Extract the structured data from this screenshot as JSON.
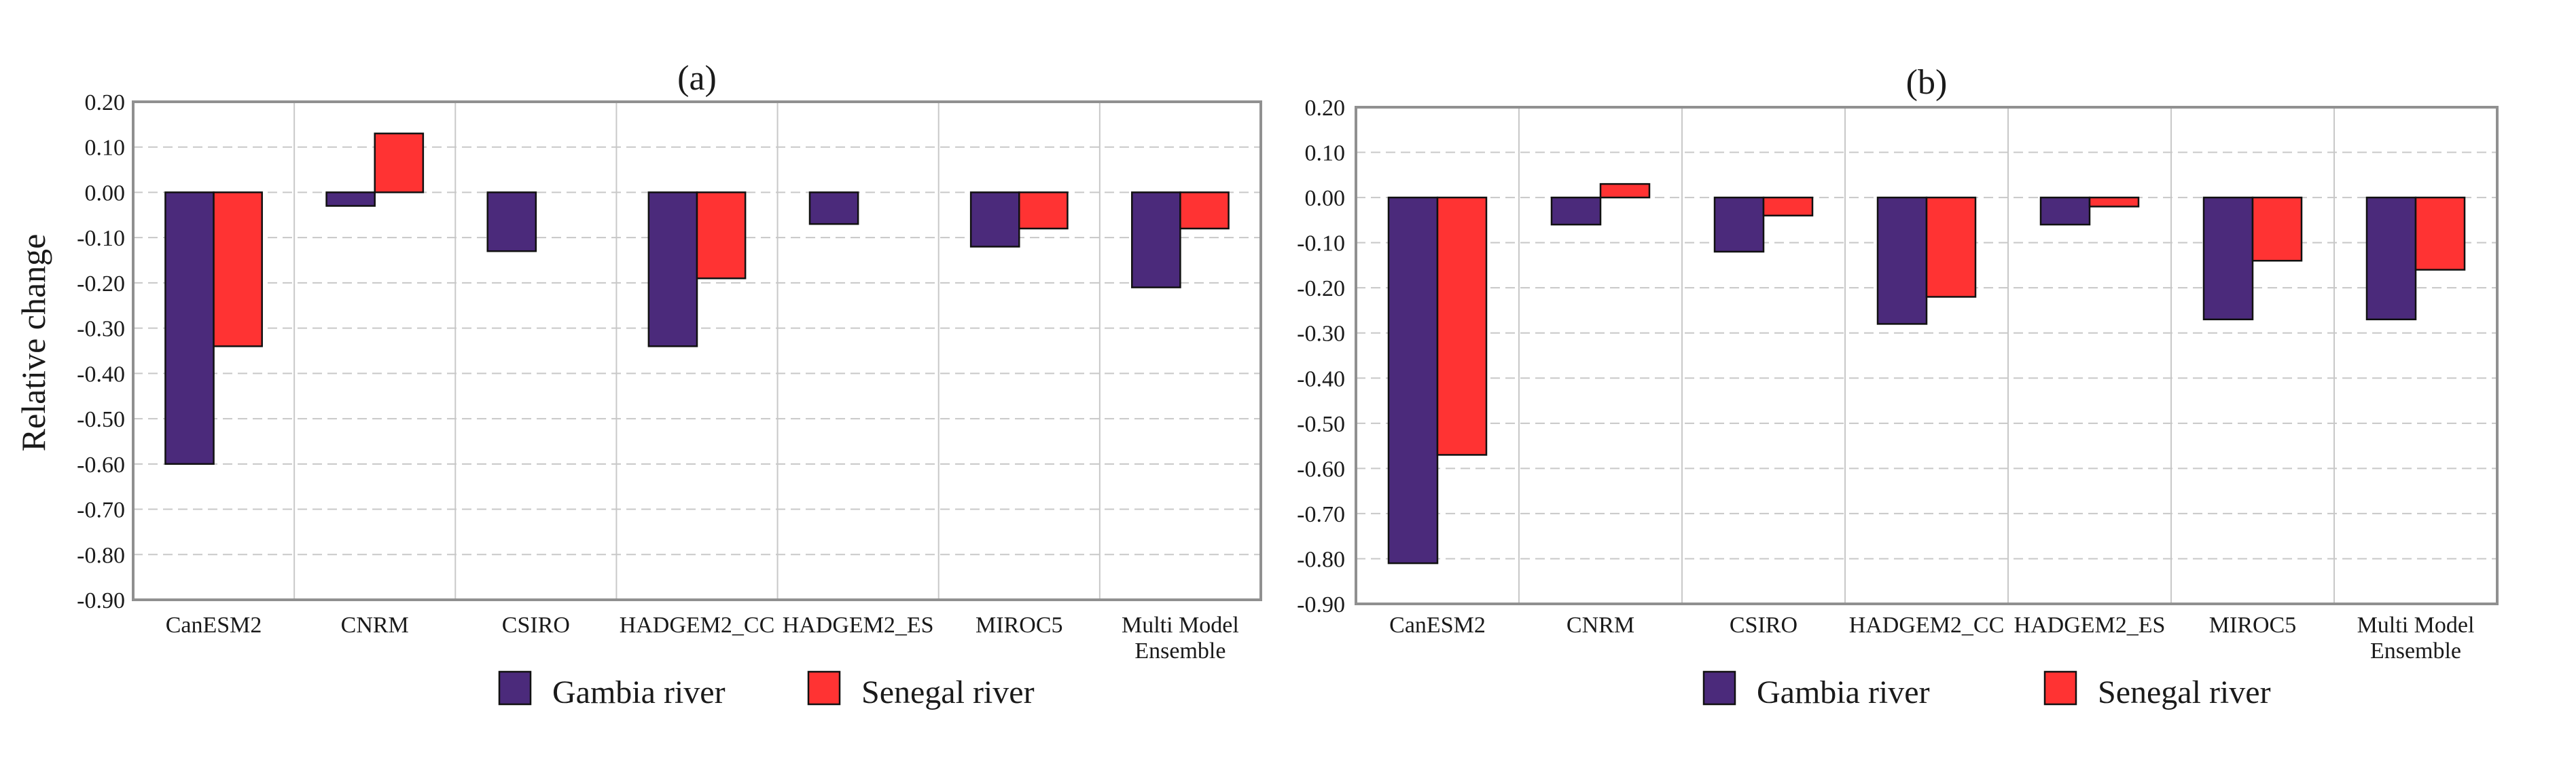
{
  "figure": {
    "ylabel": "Relative change",
    "categories": [
      "CanESM2",
      "CNRM",
      "CSIRO",
      "HADGEM2_CC",
      "HADGEM2_ES",
      "MIROC5",
      "Multi Model Ensemble"
    ],
    "category_lines": [
      [
        "CanESM2"
      ],
      [
        "CNRM"
      ],
      [
        "CSIRO"
      ],
      [
        "HADGEM2_CC"
      ],
      [
        "HADGEM2_ES"
      ],
      [
        "MIROC5"
      ],
      [
        "Multi Model",
        "Ensemble"
      ]
    ],
    "colors": {
      "gambia": "#4b2a7b",
      "senegal": "#ff3333",
      "grid": "#c8c8c8",
      "frame": "#909090"
    }
  },
  "chart_data": [
    {
      "type": "bar",
      "title": "(a)",
      "xlabel": "",
      "ylabel": "Relative change",
      "categories": [
        "CanESM2",
        "CNRM",
        "CSIRO",
        "HADGEM2_CC",
        "HADGEM2_ES",
        "MIROC5",
        "Multi Model Ensemble"
      ],
      "series": [
        {
          "name": "Gambia river",
          "values": [
            -0.6,
            -0.03,
            -0.13,
            -0.34,
            -0.07,
            -0.12,
            -0.21
          ]
        },
        {
          "name": "Senegal river",
          "values": [
            -0.34,
            0.13,
            0.0,
            -0.19,
            0.0,
            -0.08,
            -0.08
          ]
        }
      ],
      "ylim": [
        -0.9,
        0.2
      ],
      "yticks": [
        "0.20",
        "0.10",
        "0.00",
        "-0.10",
        "-0.20",
        "-0.30",
        "-0.40",
        "-0.50",
        "-0.60",
        "-0.70",
        "-0.80",
        "-0.90"
      ],
      "grid": true,
      "legend": "bottom"
    },
    {
      "type": "bar",
      "title": "(b)",
      "xlabel": "",
      "ylabel": "",
      "categories": [
        "CanESM2",
        "CNRM",
        "CSIRO",
        "HADGEM2_CC",
        "HADGEM2_ES",
        "MIROC5",
        "Multi Model Ensemble"
      ],
      "series": [
        {
          "name": "Gambia river",
          "values": [
            -0.81,
            -0.06,
            -0.12,
            -0.28,
            -0.06,
            -0.27,
            -0.27
          ]
        },
        {
          "name": "Senegal river",
          "values": [
            -0.57,
            0.03,
            -0.04,
            -0.22,
            -0.02,
            -0.14,
            -0.16
          ]
        }
      ],
      "ylim": [
        -0.9,
        0.2
      ],
      "yticks": [
        "0.20",
        "0.10",
        "0.00",
        "-0.10",
        "-0.20",
        "-0.30",
        "-0.40",
        "-0.50",
        "-0.60",
        "-0.70",
        "-0.80",
        "-0.90"
      ],
      "grid": true,
      "legend": "bottom"
    }
  ]
}
